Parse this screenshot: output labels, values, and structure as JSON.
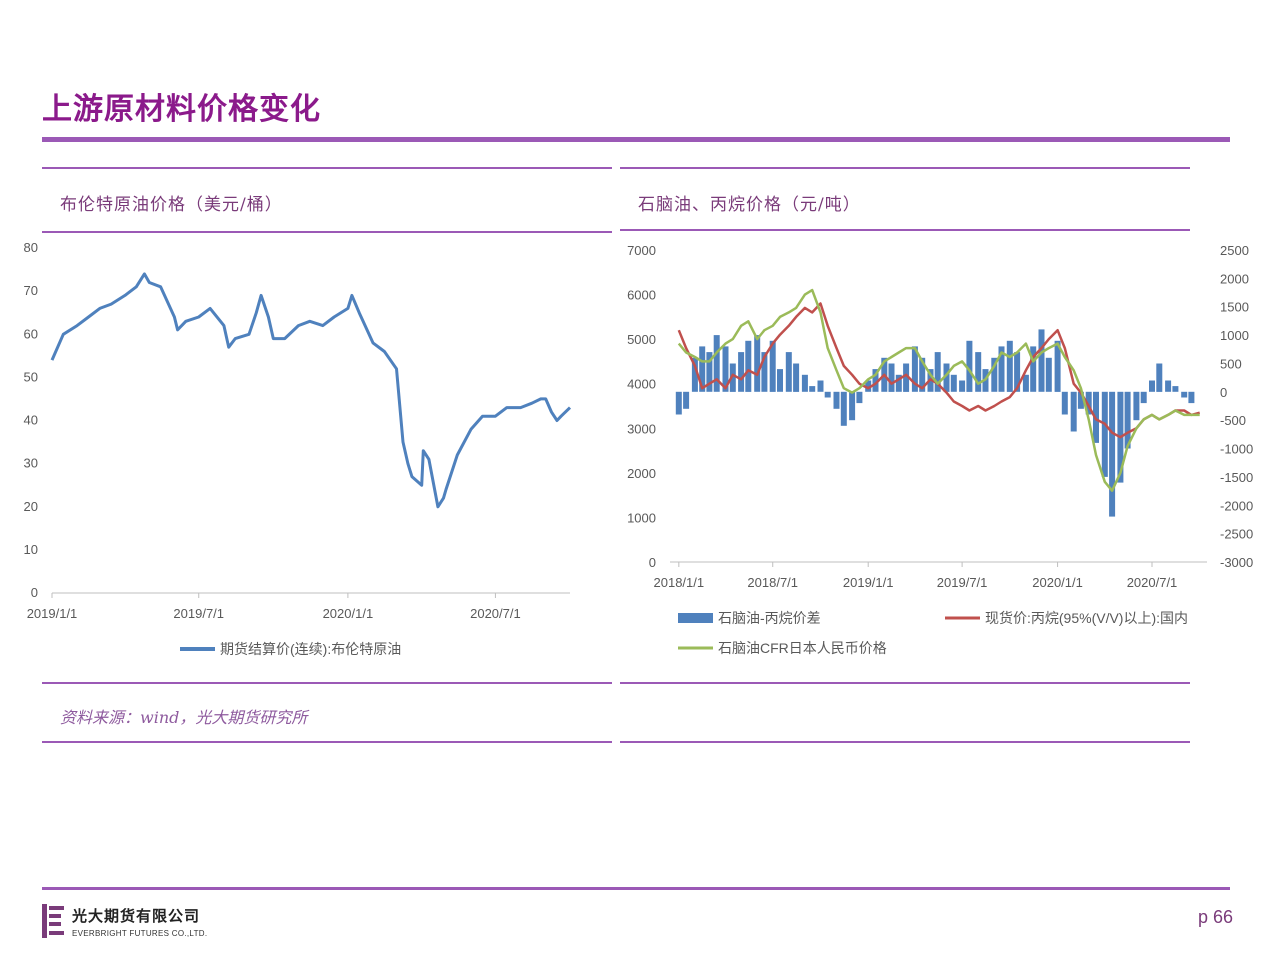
{
  "page": {
    "title": "上游原材料价格变化",
    "page_number": "p 66",
    "source_note": "资料来源：wind，光大期货研究所",
    "company_cn": "光大期货有限公司",
    "company_en": "EVERBRIGHT FUTURES CO.,LTD.",
    "accent_color": "#9b59b6"
  },
  "panels": {
    "left_title": "布伦特原油价格（美元/桶）",
    "right_title": "石脑油、丙烷价格（元/吨）"
  },
  "chart_data": [
    {
      "type": "line",
      "title": "布伦特原油价格（美元/桶）",
      "x_ticks": [
        "2019/1/1",
        "2019/7/1",
        "2020/1/1",
        "2020/7/1"
      ],
      "y_ticks": [
        "0",
        "10",
        "20",
        "30",
        "40",
        "50",
        "60",
        "70",
        "80"
      ],
      "ylim": [
        0,
        80
      ],
      "xlim": [
        "2019/1/1",
        "2020/10/1"
      ],
      "legend_position": "bottom",
      "series": [
        {
          "name": "期货结算价(连续):布伦特原油",
          "color": "#4f81bd",
          "x": [
            "2019/1/1",
            "2019/1/15",
            "2019/2/1",
            "2019/2/15",
            "2019/3/1",
            "2019/3/15",
            "2019/4/1",
            "2019/4/15",
            "2019/4/25",
            "2019/5/1",
            "2019/5/15",
            "2019/6/1",
            "2019/6/5",
            "2019/6/15",
            "2019/7/1",
            "2019/7/15",
            "2019/8/1",
            "2019/8/7",
            "2019/8/15",
            "2019/9/1",
            "2019/9/10",
            "2019/9/16",
            "2019/9/25",
            "2019/10/1",
            "2019/10/15",
            "2019/11/1",
            "2019/11/15",
            "2019/12/1",
            "2019/12/15",
            "2020/1/1",
            "2020/1/6",
            "2020/1/15",
            "2020/2/1",
            "2020/2/15",
            "2020/3/1",
            "2020/3/9",
            "2020/3/15",
            "2020/3/20",
            "2020/4/1",
            "2020/4/3",
            "2020/4/10",
            "2020/4/21",
            "2020/4/28",
            "2020/5/1",
            "2020/5/15",
            "2020/6/1",
            "2020/6/15",
            "2020/7/1",
            "2020/7/15",
            "2020/8/1",
            "2020/8/15",
            "2020/8/26",
            "2020/9/1",
            "2020/9/8",
            "2020/9/15",
            "2020/9/20",
            "2020/10/1"
          ],
          "y": [
            54,
            60,
            62,
            64,
            66,
            67,
            69,
            71,
            74,
            72,
            71,
            64,
            61,
            63,
            64,
            66,
            62,
            57,
            59,
            60,
            65,
            69,
            64,
            59,
            59,
            62,
            63,
            62,
            64,
            66,
            69,
            65,
            58,
            56,
            52,
            35,
            30,
            27,
            25,
            33,
            31,
            20,
            22,
            24,
            32,
            38,
            41,
            41,
            43,
            43,
            44,
            45,
            45,
            42,
            40,
            41,
            43
          ]
        }
      ]
    },
    {
      "type": "bar",
      "title": "石脑油、丙烷价格（元/吨）",
      "x_ticks": [
        "2018/1/1",
        "2018/7/1",
        "2019/1/1",
        "2019/7/1",
        "2020/1/1",
        "2020/7/1"
      ],
      "y_ticks_left": [
        "0",
        "1000",
        "2000",
        "3000",
        "4000",
        "5000",
        "6000",
        "7000"
      ],
      "y_ticks_right": [
        "-3000",
        "-2500",
        "-2000",
        "-1500",
        "-1000",
        "-500",
        "0",
        "500",
        "1000",
        "1500",
        "2000",
        "2500"
      ],
      "ylim_left": [
        0,
        7000
      ],
      "ylim_right": [
        -3000,
        2500
      ],
      "xlim": [
        "2017/12/15",
        "2020/10/15"
      ],
      "legend_position": "bottom",
      "series": [
        {
          "name": "石脑油-丙烷价差",
          "type": "bar",
          "axis": "right",
          "color": "#4f81bd",
          "x": [
            "2018/1/1",
            "2018/1/15",
            "2018/2/1",
            "2018/2/15",
            "2018/3/1",
            "2018/3/15",
            "2018/4/1",
            "2018/4/15",
            "2018/5/1",
            "2018/5/15",
            "2018/6/1",
            "2018/6/15",
            "2018/7/1",
            "2018/7/15",
            "2018/8/1",
            "2018/8/15",
            "2018/9/1",
            "2018/9/15",
            "2018/10/1",
            "2018/10/15",
            "2018/11/1",
            "2018/11/15",
            "2018/12/1",
            "2018/12/15",
            "2019/1/1",
            "2019/1/15",
            "2019/2/1",
            "2019/2/15",
            "2019/3/1",
            "2019/3/15",
            "2019/4/1",
            "2019/4/15",
            "2019/5/1",
            "2019/5/15",
            "2019/6/1",
            "2019/6/15",
            "2019/7/1",
            "2019/7/15",
            "2019/8/1",
            "2019/8/15",
            "2019/9/1",
            "2019/9/15",
            "2019/10/1",
            "2019/10/15",
            "2019/11/1",
            "2019/11/15",
            "2019/12/1",
            "2019/12/15",
            "2020/1/1",
            "2020/1/15",
            "2020/2/1",
            "2020/2/15",
            "2020/3/1",
            "2020/3/15",
            "2020/4/1",
            "2020/4/15",
            "2020/5/1",
            "2020/5/15",
            "2020/6/1",
            "2020/6/15",
            "2020/7/1",
            "2020/7/15",
            "2020/8/1",
            "2020/8/15",
            "2020/9/1",
            "2020/9/15"
          ],
          "values": [
            -400,
            -300,
            600,
            800,
            700,
            1000,
            800,
            500,
            700,
            900,
            1000,
            700,
            900,
            400,
            700,
            500,
            300,
            100,
            200,
            -100,
            -300,
            -600,
            -500,
            -200,
            200,
            400,
            600,
            500,
            300,
            500,
            800,
            600,
            400,
            700,
            500,
            300,
            200,
            900,
            700,
            400,
            600,
            800,
            900,
            700,
            300,
            800,
            1100,
            600,
            900,
            -400,
            -700,
            -300,
            -400,
            -900,
            -1500,
            -2200,
            -1600,
            -1000,
            -500,
            -200,
            200,
            500,
            200,
            100,
            -100,
            -200
          ]
        },
        {
          "name": "现货价:丙烷(95%(V/V)以上):国内",
          "type": "line",
          "axis": "left",
          "color": "#c0504d",
          "x": [
            "2018/1/1",
            "2018/1/15",
            "2018/2/1",
            "2018/2/15",
            "2018/3/1",
            "2018/3/15",
            "2018/4/1",
            "2018/4/15",
            "2018/5/1",
            "2018/5/15",
            "2018/6/1",
            "2018/6/15",
            "2018/7/1",
            "2018/7/15",
            "2018/8/1",
            "2018/8/15",
            "2018/9/1",
            "2018/9/15",
            "2018/10/1",
            "2018/10/15",
            "2018/11/1",
            "2018/11/15",
            "2018/12/1",
            "2018/12/15",
            "2019/1/1",
            "2019/1/15",
            "2019/2/1",
            "2019/2/15",
            "2019/3/1",
            "2019/3/15",
            "2019/4/1",
            "2019/4/15",
            "2019/5/1",
            "2019/5/15",
            "2019/6/1",
            "2019/6/15",
            "2019/7/1",
            "2019/7/15",
            "2019/8/1",
            "2019/8/15",
            "2019/9/1",
            "2019/9/15",
            "2019/10/1",
            "2019/10/15",
            "2019/11/1",
            "2019/11/15",
            "2019/12/1",
            "2019/12/15",
            "2020/1/1",
            "2020/1/15",
            "2020/2/1",
            "2020/2/15",
            "2020/3/1",
            "2020/3/15",
            "2020/4/1",
            "2020/4/15",
            "2020/5/1",
            "2020/5/15",
            "2020/6/1",
            "2020/6/15",
            "2020/7/1",
            "2020/7/15",
            "2020/8/1",
            "2020/8/15",
            "2020/9/1",
            "2020/9/15",
            "2020/10/1"
          ],
          "y": [
            5200,
            4800,
            4400,
            3900,
            4000,
            4100,
            3900,
            4200,
            4100,
            4300,
            4200,
            4600,
            4900,
            5100,
            5300,
            5500,
            5700,
            5600,
            5800,
            5300,
            4800,
            4400,
            4200,
            4000,
            3900,
            4000,
            4200,
            4000,
            4100,
            4200,
            4000,
            3900,
            4100,
            4000,
            3800,
            3600,
            3500,
            3400,
            3500,
            3400,
            3500,
            3600,
            3700,
            3900,
            4300,
            4600,
            4800,
            5000,
            5200,
            4800,
            4000,
            3800,
            3500,
            3200,
            3100,
            2900,
            2800,
            2900,
            3000,
            3200,
            3300,
            3200,
            3300,
            3400,
            3400,
            3300,
            3350
          ]
        },
        {
          "name": "石脑油CFR日本人民币价格",
          "type": "line",
          "axis": "left",
          "color": "#9bbb59",
          "x": [
            "2018/1/1",
            "2018/1/15",
            "2018/2/1",
            "2018/2/15",
            "2018/3/1",
            "2018/3/15",
            "2018/4/1",
            "2018/4/15",
            "2018/5/1",
            "2018/5/15",
            "2018/6/1",
            "2018/6/15",
            "2018/7/1",
            "2018/7/15",
            "2018/8/1",
            "2018/8/15",
            "2018/9/1",
            "2018/9/15",
            "2018/10/1",
            "2018/10/15",
            "2018/11/1",
            "2018/11/15",
            "2018/12/1",
            "2018/12/15",
            "2019/1/1",
            "2019/1/15",
            "2019/2/1",
            "2019/2/15",
            "2019/3/1",
            "2019/3/15",
            "2019/4/1",
            "2019/4/15",
            "2019/5/1",
            "2019/5/15",
            "2019/6/1",
            "2019/6/15",
            "2019/7/1",
            "2019/7/15",
            "2019/8/1",
            "2019/8/15",
            "2019/9/1",
            "2019/9/15",
            "2019/10/1",
            "2019/10/15",
            "2019/11/1",
            "2019/11/15",
            "2019/12/1",
            "2019/12/15",
            "2020/1/1",
            "2020/1/15",
            "2020/2/1",
            "2020/2/15",
            "2020/3/1",
            "2020/3/15",
            "2020/4/1",
            "2020/4/15",
            "2020/5/1",
            "2020/5/15",
            "2020/6/1",
            "2020/6/15",
            "2020/7/1",
            "2020/7/15",
            "2020/8/1",
            "2020/8/15",
            "2020/9/1",
            "2020/9/15",
            "2020/10/1"
          ],
          "y": [
            4900,
            4700,
            4600,
            4500,
            4500,
            4700,
            4900,
            5000,
            5300,
            5400,
            5000,
            5200,
            5300,
            5500,
            5600,
            5700,
            6000,
            6100,
            5600,
            4800,
            4300,
            3900,
            3800,
            3900,
            4100,
            4200,
            4500,
            4600,
            4700,
            4800,
            4800,
            4500,
            4200,
            4000,
            4200,
            4400,
            4500,
            4300,
            4000,
            4100,
            4400,
            4700,
            4600,
            4700,
            4900,
            4500,
            4700,
            4800,
            4900,
            4600,
            4300,
            3900,
            3200,
            2400,
            1800,
            1600,
            2000,
            2600,
            3000,
            3200,
            3300,
            3200,
            3300,
            3400,
            3300,
            3300,
            3300
          ]
        }
      ]
    }
  ]
}
